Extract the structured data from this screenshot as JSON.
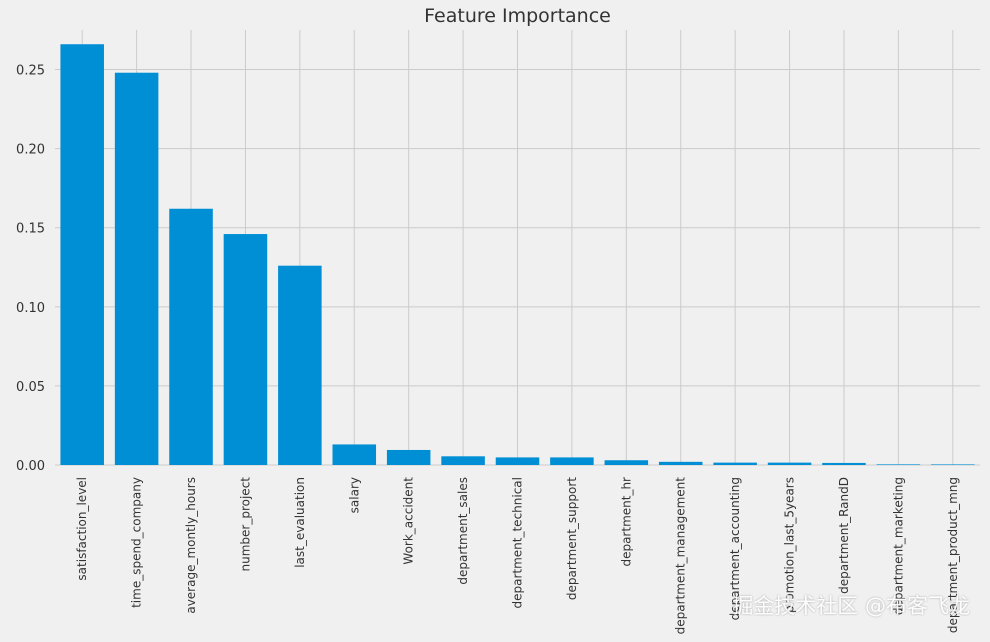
{
  "chart_data": {
    "type": "bar",
    "title": "Feature Importance",
    "xlabel": "",
    "ylabel": "",
    "ylim": [
      0,
      0.275
    ],
    "yticks": [
      "0.00",
      "0.05",
      "0.10",
      "0.15",
      "0.20",
      "0.25"
    ],
    "grid": true,
    "categories": [
      "satisfaction_level",
      "time_spend_company",
      "average_montly_hours",
      "number_project",
      "last_evaluation",
      "salary",
      "Work_accident",
      "department_sales",
      "department_technical",
      "department_support",
      "department_hr",
      "department_management",
      "department_accounting",
      "promotion_last_5years",
      "department_RandD",
      "department_marketing",
      "department_product_mng"
    ],
    "values": [
      0.266,
      0.248,
      0.162,
      0.146,
      0.126,
      0.013,
      0.0095,
      0.0055,
      0.0048,
      0.0048,
      0.003,
      0.002,
      0.0015,
      0.0015,
      0.0013,
      0.0004,
      0.0003
    ],
    "bar_color": "#008fd5"
  },
  "watermark": "掘金技术社区 @布客飞龙"
}
